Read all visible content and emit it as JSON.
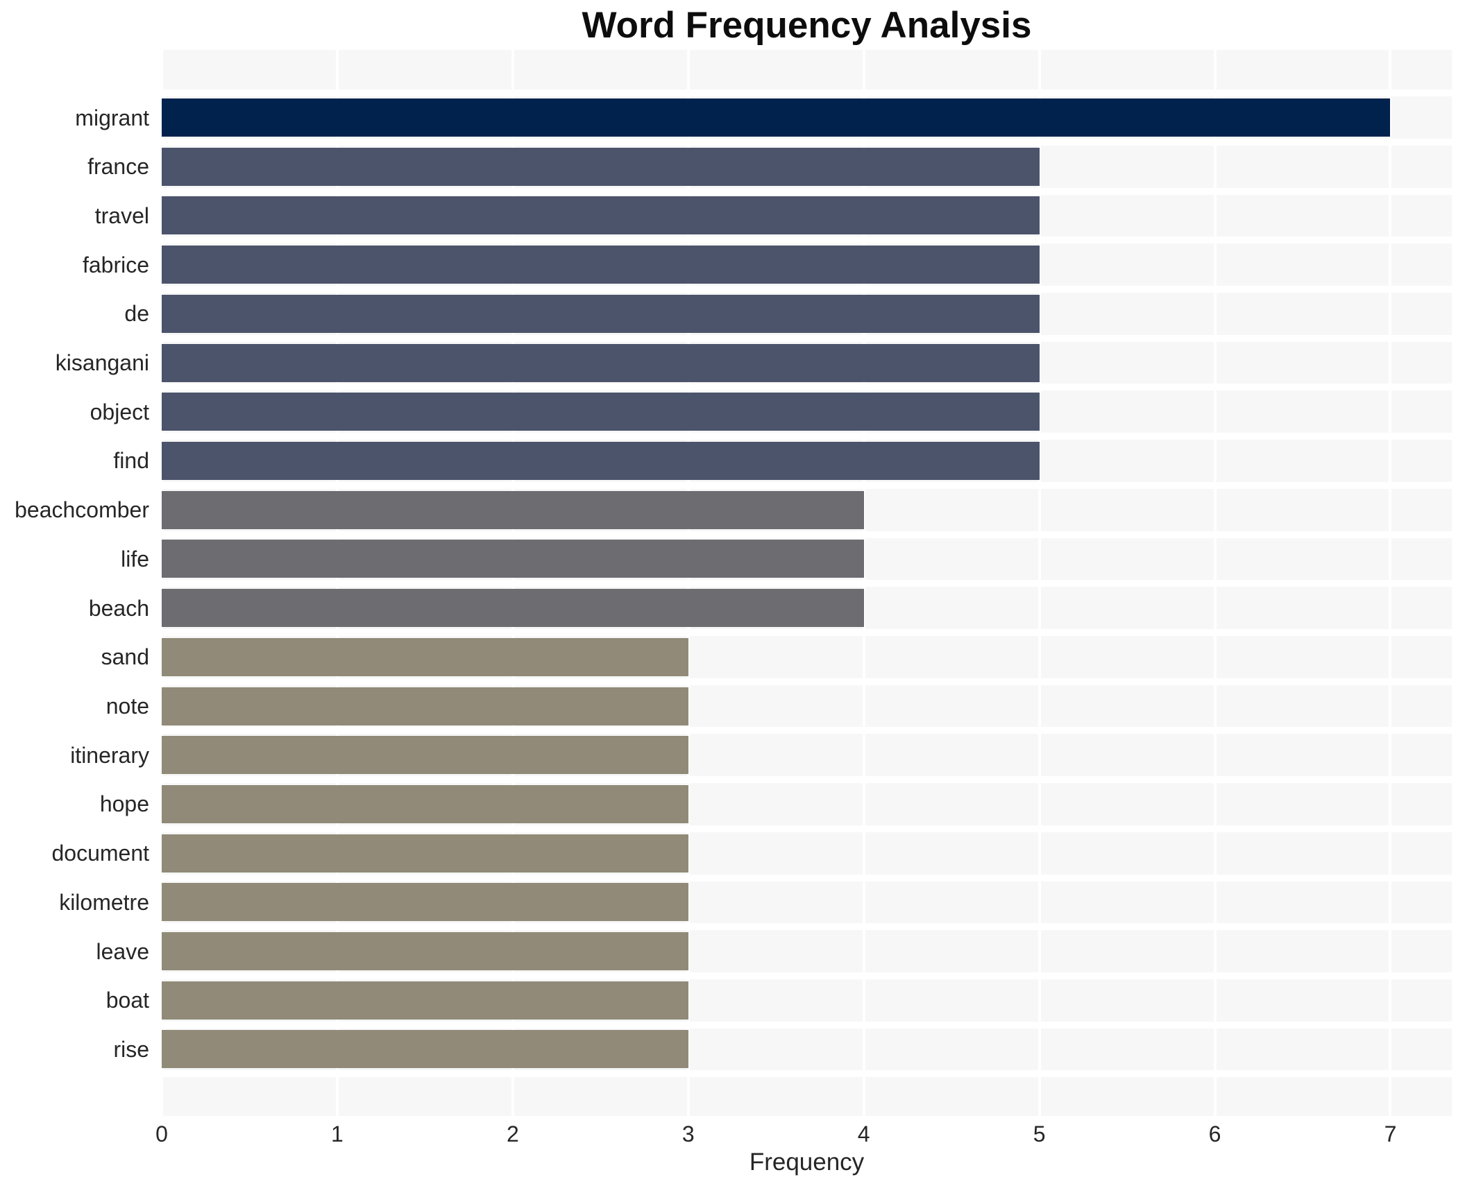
{
  "title": "Word Frequency Analysis",
  "axes": {
    "x_label": "Frequency",
    "x_ticks": [
      "0",
      "1",
      "2",
      "3",
      "4",
      "5",
      "6",
      "7"
    ]
  },
  "colors": {
    "figure_background": "#ffffff",
    "plot_background": "#f6f7f6",
    "gridline": "#ffffff",
    "bar_value7": "#02224e",
    "bar_value5": "#4c546c",
    "bar_value4": "#6c6c71",
    "bar_value3": "#918a78",
    "label_text": "#262626",
    "title_text": "#0d0d0d"
  },
  "chart_data": {
    "type": "bar",
    "orientation": "horizontal",
    "title": "Word Frequency Analysis",
    "xlabel": "Frequency",
    "ylabel": "",
    "xlim": [
      0,
      7.35
    ],
    "x_tick_values": [
      0,
      1,
      2,
      3,
      4,
      5,
      6,
      7
    ],
    "grid": true,
    "legend": false,
    "categories": [
      "migrant",
      "france",
      "travel",
      "fabrice",
      "de",
      "kisangani",
      "object",
      "find",
      "beachcomber",
      "life",
      "beach",
      "sand",
      "note",
      "itinerary",
      "hope",
      "document",
      "kilometre",
      "leave",
      "boat",
      "rise"
    ],
    "values": [
      7,
      5,
      5,
      5,
      5,
      5,
      5,
      5,
      4,
      4,
      4,
      3,
      3,
      3,
      3,
      3,
      3,
      3,
      3,
      3
    ],
    "bar_colors": [
      "#02224e",
      "#4c546c",
      "#4c546c",
      "#4c546c",
      "#4c546c",
      "#4c546c",
      "#4c546c",
      "#4c546c",
      "#6c6c71",
      "#6c6c71",
      "#6c6c71",
      "#918a78",
      "#918a78",
      "#918a78",
      "#918a78",
      "#918a78",
      "#918a78",
      "#918a78",
      "#918a78",
      "#918a78"
    ]
  }
}
